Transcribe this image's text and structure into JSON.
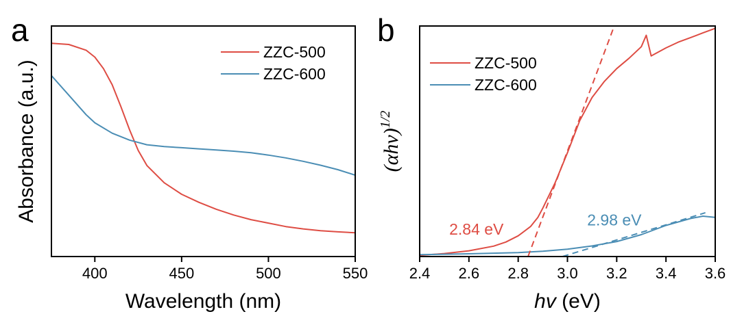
{
  "colors": {
    "red": "#DE4C43",
    "blue": "#4A8DB4",
    "axis": "#000000"
  },
  "chart_data": [
    {
      "panel_letter": "a",
      "type": "line",
      "xlabel": "Wavelength (nm)",
      "ylabel": "Absorbance (a.u.)",
      "xlim": [
        375,
        550
      ],
      "ylim": [
        0,
        100
      ],
      "xticks": [
        400,
        450,
        500,
        550
      ],
      "xtick_labels": [
        "400",
        "450",
        "500",
        "550"
      ],
      "yticks_shown": false,
      "grid": false,
      "legend": "top-right",
      "series": [
        {
          "name": "ZZC-500",
          "color": "#DE4C43",
          "x": [
            375,
            385,
            395,
            400,
            405,
            410,
            415,
            420,
            425,
            430,
            440,
            450,
            460,
            470,
            480,
            490,
            500,
            510,
            520,
            530,
            540,
            550
          ],
          "y": [
            92.5,
            92.0,
            89.5,
            86.5,
            81.5,
            74.5,
            65.0,
            55.0,
            46.0,
            39.5,
            32.0,
            27.0,
            23.5,
            20.5,
            18.0,
            16.0,
            14.5,
            13.0,
            12.0,
            11.2,
            10.7,
            10.3
          ]
        },
        {
          "name": "ZZC-600",
          "color": "#4A8DB4",
          "x": [
            375,
            385,
            395,
            400,
            410,
            420,
            430,
            440,
            450,
            460,
            470,
            480,
            490,
            500,
            510,
            520,
            530,
            540,
            550
          ],
          "y": [
            78.5,
            70.0,
            61.5,
            58.0,
            53.5,
            50.5,
            48.5,
            47.7,
            47.2,
            46.7,
            46.2,
            45.7,
            45.0,
            44.0,
            42.8,
            41.3,
            39.6,
            37.7,
            35.3
          ]
        }
      ]
    },
    {
      "panel_letter": "b",
      "type": "line",
      "xlabel_italic": "hv",
      "xlabel_unit": " (eV)",
      "ylabel_italic": "(αhv)",
      "ylabel_sup": "1/2",
      "xlim": [
        2.4,
        3.6
      ],
      "ylim": [
        0,
        100
      ],
      "xticks": [
        2.4,
        2.6,
        2.8,
        3.0,
        3.2,
        3.4,
        3.6
      ],
      "xtick_labels": [
        "2.4",
        "2.6",
        "2.8",
        "3.0",
        "3.2",
        "3.4",
        "3.6"
      ],
      "yticks_shown": false,
      "grid": false,
      "legend": "top-left",
      "series": [
        {
          "name": "ZZC-500",
          "color": "#DE4C43",
          "x": [
            2.4,
            2.5,
            2.6,
            2.7,
            2.75,
            2.8,
            2.85,
            2.88,
            2.9,
            2.95,
            3.0,
            3.05,
            3.1,
            3.15,
            3.2,
            3.25,
            3.3,
            3.32,
            3.34,
            3.4,
            3.45,
            3.5,
            3.55,
            3.6
          ],
          "y": [
            0.5,
            1.3,
            2.5,
            4.5,
            6.3,
            9.0,
            13.0,
            17.0,
            21.0,
            32.0,
            45.0,
            59.0,
            69.0,
            76.0,
            81.5,
            86.0,
            91.0,
            96.0,
            87.0,
            90.5,
            93.0,
            95.0,
            97.0,
            99.0
          ]
        },
        {
          "name": "ZZC-600",
          "color": "#4A8DB4",
          "x": [
            2.4,
            2.6,
            2.8,
            2.9,
            3.0,
            3.1,
            3.2,
            3.3,
            3.4,
            3.5,
            3.55,
            3.6
          ],
          "y": [
            0.8,
            1.2,
            1.7,
            2.3,
            3.2,
            4.6,
            6.5,
            9.5,
            13.5,
            16.5,
            17.5,
            17.0
          ]
        }
      ],
      "tangent_lines": [
        {
          "color": "#DE4C43",
          "x": [
            2.84,
            3.19
          ],
          "y": [
            0,
            100
          ]
        },
        {
          "color": "#4A8DB4",
          "x": [
            2.98,
            3.56
          ],
          "y": [
            0,
            19
          ]
        }
      ],
      "annotations": [
        {
          "text": "2.84 eV",
          "color": "#DE4C43",
          "x": 2.52,
          "y": 9.5
        },
        {
          "text": "2.98 eV",
          "color": "#4A8DB4",
          "x": 3.08,
          "y": 13.5
        }
      ]
    }
  ]
}
